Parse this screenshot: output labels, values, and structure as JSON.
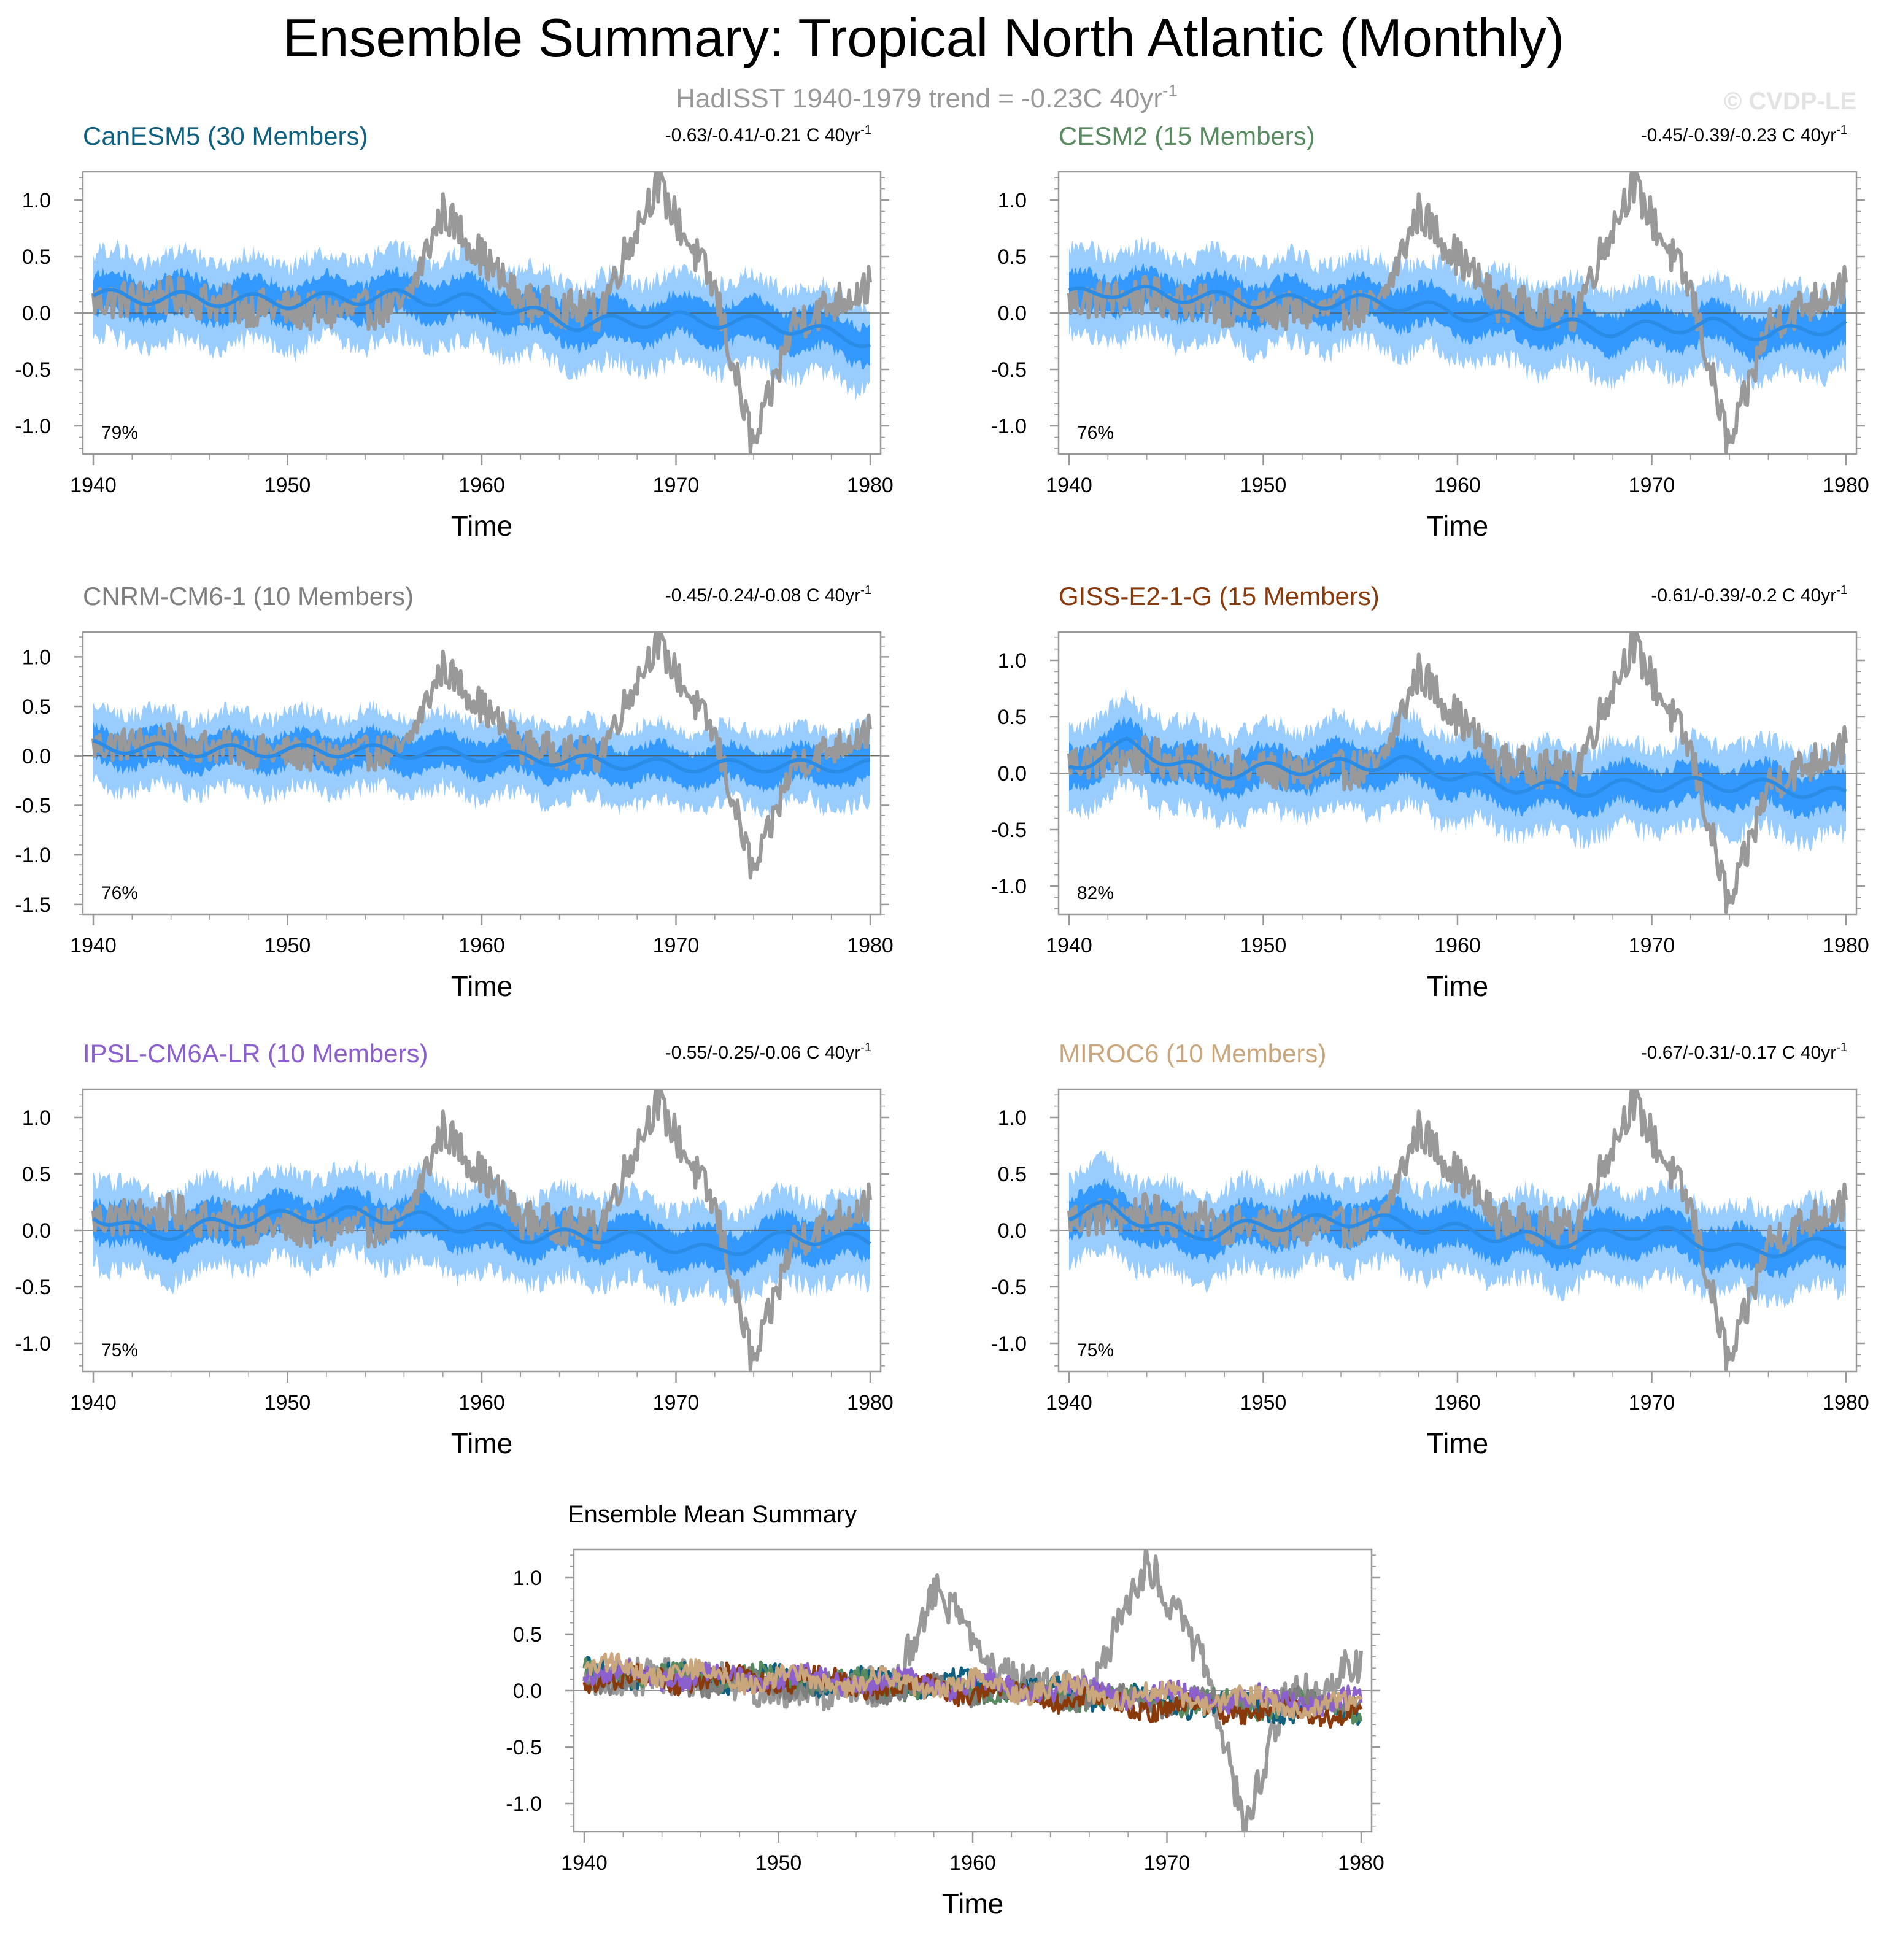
{
  "title": "Ensemble Summary: Tropical North Atlantic (Monthly)",
  "subtitle": {
    "text": "HadISST 1940-1979 trend = -0.23C 40yr",
    "superscript": "-1"
  },
  "watermark": "© CVDP-LE",
  "colors": {
    "observations": "#999999",
    "spread_outer": "#99ccff",
    "spread_inner": "#3399ff",
    "ensemble_mean": "#2b8ce6",
    "axis": "#999999",
    "zero_line": "#555555"
  },
  "chart_data": [
    {
      "type": "line",
      "title": "CanESM5 (30 Members)",
      "title_color": "#0d607f",
      "trend_label": "-0.63/-0.41/-0.21 C 40yr",
      "trend_superscript": "-1",
      "percent_label": "79%",
      "xlabel": "Time",
      "ylabel": "",
      "xlim": [
        1940,
        1980
      ],
      "ylim": [
        -1.25,
        1.25
      ],
      "xticks": [
        1940,
        1950,
        1960,
        1970,
        1980
      ],
      "yticks": [
        1.0,
        0.5,
        0.0,
        -0.5,
        -1.0
      ],
      "ytick_labels": [
        "1.0",
        "0.5",
        "0.0",
        "-0.5",
        "-1.0"
      ],
      "series": [
        {
          "name": "HadISST observations",
          "x": [
            1940,
            1944,
            1948,
            1952,
            1956,
            1958,
            1962,
            1966,
            1969,
            1972,
            1974,
            1976,
            1980
          ],
          "values": [
            0.1,
            0.15,
            0.05,
            0.0,
            0.05,
            0.9,
            0.1,
            0.0,
            1.15,
            0.2,
            -1.2,
            -0.1,
            0.25
          ]
        },
        {
          "name": "Ensemble mean",
          "x": [
            1940,
            1950,
            1955,
            1960,
            1965,
            1970,
            1975,
            1980
          ],
          "values": [
            0.15,
            0.1,
            0.15,
            0.1,
            -0.1,
            -0.05,
            -0.1,
            -0.25
          ]
        }
      ]
    },
    {
      "type": "line",
      "title": "CESM2 (15 Members)",
      "title_color": "#578a5f",
      "trend_label": "-0.45/-0.39/-0.23 C 40yr",
      "trend_superscript": "-1",
      "percent_label": "76%",
      "xlabel": "Time",
      "ylabel": "",
      "xlim": [
        1940,
        1980
      ],
      "ylim": [
        -1.25,
        1.25
      ],
      "xticks": [
        1940,
        1950,
        1960,
        1970,
        1980
      ],
      "yticks": [
        1.0,
        0.5,
        0.0,
        -0.5,
        -1.0
      ],
      "ytick_labels": [
        "1.0",
        "0.5",
        "0.0",
        "-0.5",
        "-1.0"
      ],
      "series": [
        {
          "name": "HadISST observations",
          "x": [
            1940,
            1944,
            1948,
            1952,
            1956,
            1958,
            1962,
            1966,
            1969,
            1972,
            1974,
            1976,
            1980
          ],
          "values": [
            0.1,
            0.15,
            0.05,
            0.0,
            0.05,
            0.9,
            0.1,
            0.0,
            1.15,
            0.2,
            -1.2,
            -0.1,
            0.25
          ]
        },
        {
          "name": "Ensemble mean",
          "x": [
            1940,
            1942,
            1950,
            1956,
            1960,
            1965,
            1968,
            1973,
            1976,
            1980
          ],
          "values": [
            0.15,
            0.2,
            0.1,
            0.1,
            0.0,
            -0.1,
            -0.15,
            -0.1,
            -0.2,
            -0.1
          ]
        }
      ]
    },
    {
      "type": "line",
      "title": "CNRM-CM6-1 (10 Members)",
      "title_color": "#7f7f7f",
      "trend_label": "-0.45/-0.24/-0.08 C 40yr",
      "trend_superscript": "-1",
      "percent_label": "76%",
      "xlabel": "Time",
      "ylabel": "",
      "xlim": [
        1940,
        1980
      ],
      "ylim": [
        -1.6,
        1.25
      ],
      "xticks": [
        1940,
        1950,
        1960,
        1970,
        1980
      ],
      "yticks": [
        1.0,
        0.5,
        0.0,
        -0.5,
        -1.0,
        -1.5
      ],
      "ytick_labels": [
        "1.0",
        "0.5",
        "0.0",
        "-0.5",
        "-1.0",
        "-1.5"
      ],
      "series": [
        {
          "name": "HadISST observations",
          "x": [
            1940,
            1944,
            1948,
            1952,
            1956,
            1958,
            1962,
            1966,
            1969,
            1972,
            1974,
            1976,
            1980
          ],
          "values": [
            0.1,
            0.15,
            0.05,
            0.0,
            0.05,
            0.9,
            0.1,
            0.0,
            1.15,
            0.2,
            -1.2,
            -0.1,
            0.25
          ]
        },
        {
          "name": "Ensemble mean",
          "x": [
            1940,
            1945,
            1950,
            1955,
            1960,
            1965,
            1970,
            1975,
            1980
          ],
          "values": [
            0.1,
            0.05,
            0.05,
            0.05,
            0.0,
            -0.05,
            -0.1,
            -0.1,
            -0.1
          ]
        }
      ]
    },
    {
      "type": "line",
      "title": "GISS-E2-1-G (15 Members)",
      "title_color": "#8a3a0a",
      "trend_label": "-0.61/-0.39/-0.2 C 40yr",
      "trend_superscript": "-1",
      "percent_label": "82%",
      "xlabel": "Time",
      "ylabel": "",
      "xlim": [
        1940,
        1980
      ],
      "ylim": [
        -1.25,
        1.25
      ],
      "xticks": [
        1940,
        1950,
        1960,
        1970,
        1980
      ],
      "yticks": [
        1.0,
        0.5,
        0.0,
        -0.5,
        -1.0
      ],
      "ytick_labels": [
        "1.0",
        "0.5",
        "0.0",
        "-0.5",
        "-1.0"
      ],
      "series": [
        {
          "name": "HadISST observations",
          "x": [
            1940,
            1944,
            1948,
            1952,
            1956,
            1958,
            1962,
            1966,
            1969,
            1972,
            1974,
            1976,
            1980
          ],
          "values": [
            0.1,
            0.15,
            0.05,
            0.0,
            0.05,
            0.9,
            0.1,
            0.0,
            1.15,
            0.2,
            -1.2,
            -0.1,
            0.25
          ]
        },
        {
          "name": "Ensemble mean",
          "x": [
            1940,
            1943,
            1947,
            1952,
            1957,
            1962,
            1966,
            1970,
            1975,
            1980
          ],
          "values": [
            0.05,
            0.25,
            0.0,
            0.05,
            0.1,
            -0.1,
            -0.15,
            -0.1,
            -0.1,
            -0.2
          ]
        }
      ]
    },
    {
      "type": "line",
      "title": "IPSL-CM6A-LR (10 Members)",
      "title_color": "#8c5fcf",
      "trend_label": "-0.55/-0.25/-0.06 C 40yr",
      "trend_superscript": "-1",
      "percent_label": "75%",
      "xlabel": "Time",
      "ylabel": "",
      "xlim": [
        1940,
        1980
      ],
      "ylim": [
        -1.25,
        1.25
      ],
      "xticks": [
        1940,
        1950,
        1960,
        1970,
        1980
      ],
      "yticks": [
        1.0,
        0.5,
        0.0,
        -0.5,
        -1.0
      ],
      "ytick_labels": [
        "1.0",
        "0.5",
        "0.0",
        "-0.5",
        "-1.0"
      ],
      "series": [
        {
          "name": "HadISST observations",
          "x": [
            1940,
            1944,
            1948,
            1952,
            1956,
            1958,
            1962,
            1966,
            1969,
            1972,
            1974,
            1976,
            1980
          ],
          "values": [
            0.1,
            0.15,
            0.05,
            0.0,
            0.05,
            0.9,
            0.1,
            0.0,
            1.15,
            0.2,
            -1.2,
            -0.1,
            0.25
          ]
        },
        {
          "name": "Ensemble mean",
          "x": [
            1940,
            1943,
            1948,
            1953,
            1957,
            1962,
            1967,
            1972,
            1976,
            1980
          ],
          "values": [
            0.15,
            -0.05,
            0.1,
            0.15,
            0.1,
            -0.05,
            -0.05,
            -0.2,
            -0.05,
            -0.1
          ]
        }
      ]
    },
    {
      "type": "line",
      "title": "MIROC6 (10 Members)",
      "title_color": "#c9a67c",
      "trend_label": "-0.67/-0.31/-0.17 C 40yr",
      "trend_superscript": "-1",
      "percent_label": "75%",
      "xlabel": "Time",
      "ylabel": "",
      "xlim": [
        1940,
        1980
      ],
      "ylim": [
        -1.25,
        1.25
      ],
      "xticks": [
        1940,
        1950,
        1960,
        1970,
        1980
      ],
      "yticks": [
        1.0,
        0.5,
        0.0,
        -0.5,
        -1.0
      ],
      "ytick_labels": [
        "1.0",
        "0.5",
        "0.0",
        "-0.5",
        "-1.0"
      ],
      "series": [
        {
          "name": "HadISST observations",
          "x": [
            1940,
            1944,
            1948,
            1952,
            1956,
            1958,
            1962,
            1966,
            1969,
            1972,
            1974,
            1976,
            1980
          ],
          "values": [
            0.1,
            0.15,
            0.05,
            0.0,
            0.05,
            0.9,
            0.1,
            0.0,
            1.15,
            0.2,
            -1.2,
            -0.1,
            0.25
          ]
        },
        {
          "name": "Ensemble mean",
          "x": [
            1940,
            1942,
            1946,
            1950,
            1955,
            1960,
            1965,
            1970,
            1975,
            1980
          ],
          "values": [
            0.15,
            0.2,
            -0.05,
            0.05,
            0.1,
            0.0,
            -0.1,
            0.0,
            -0.2,
            -0.1
          ]
        }
      ]
    },
    {
      "type": "line",
      "title": "Ensemble Mean Summary",
      "title_color": "#000000",
      "xlabel": "Time",
      "ylabel": "",
      "xlim": [
        1940,
        1980
      ],
      "ylim": [
        -1.25,
        1.25
      ],
      "xticks": [
        1940,
        1950,
        1960,
        1970,
        1980
      ],
      "yticks": [
        1.0,
        0.5,
        0.0,
        -0.5,
        -1.0
      ],
      "ytick_labels": [
        "1.0",
        "0.5",
        "0.0",
        "-0.5",
        "-1.0"
      ],
      "series": [
        {
          "name": "HadISST",
          "color": "#999999",
          "x": [
            1940,
            1944,
            1948,
            1952,
            1956,
            1958,
            1962,
            1966,
            1969,
            1972,
            1974,
            1976,
            1980
          ],
          "values": [
            0.1,
            0.15,
            0.05,
            0.0,
            0.05,
            0.9,
            0.1,
            0.0,
            1.15,
            0.2,
            -1.2,
            -0.1,
            0.25
          ]
        },
        {
          "name": "CanESM5",
          "color": "#0d607f",
          "x": [
            1940,
            1950,
            1960,
            1970,
            1980
          ],
          "values": [
            0.15,
            0.1,
            0.05,
            -0.1,
            -0.2
          ]
        },
        {
          "name": "CESM2",
          "color": "#578a5f",
          "x": [
            1940,
            1950,
            1960,
            1970,
            1980
          ],
          "values": [
            0.15,
            0.1,
            0.0,
            -0.1,
            -0.15
          ]
        },
        {
          "name": "CNRM-CM6-1",
          "color": "#7f7f7f",
          "x": [
            1940,
            1950,
            1960,
            1970,
            1980
          ],
          "values": [
            0.1,
            0.05,
            0.0,
            -0.1,
            -0.1
          ]
        },
        {
          "name": "GISS-E2-1-G",
          "color": "#8a3a0a",
          "x": [
            1940,
            1950,
            1960,
            1970,
            1980
          ],
          "values": [
            0.1,
            0.1,
            0.0,
            -0.15,
            -0.2
          ]
        },
        {
          "name": "IPSL-CM6A-LR",
          "color": "#8c5fcf",
          "x": [
            1940,
            1950,
            1960,
            1970,
            1980
          ],
          "values": [
            0.15,
            0.1,
            0.05,
            -0.05,
            -0.1
          ]
        },
        {
          "name": "MIROC6",
          "color": "#c9a67c",
          "x": [
            1940,
            1950,
            1960,
            1970,
            1980
          ],
          "values": [
            0.2,
            0.1,
            0.05,
            -0.05,
            -0.15
          ]
        }
      ]
    }
  ]
}
